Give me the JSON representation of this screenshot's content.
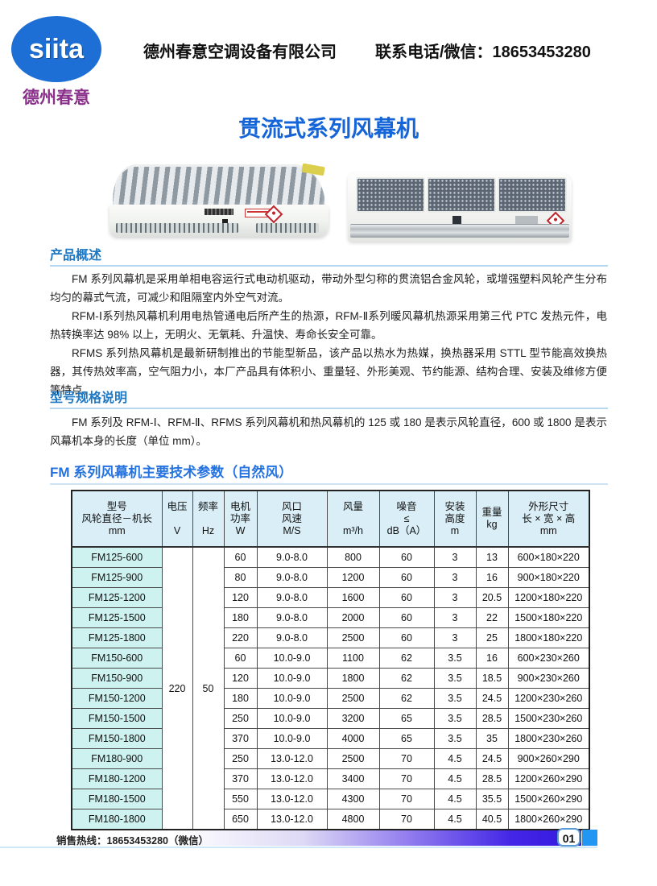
{
  "header": {
    "logo": {
      "text": "siita",
      "caption": "德州春意",
      "circle_color": "#1d6fd6",
      "caption_color": "#8a2f8a"
    },
    "company_name": "德州春意空调设备有限公司",
    "contact": "联系电话/微信：18653453280"
  },
  "title": {
    "text": "贯流式系列风幕机",
    "color": "#1565d8"
  },
  "overview": {
    "heading": "产品概述",
    "paragraphs": [
      "FM 系列风幕机是采用单相电容运行式电动机驱动，带动外型匀称的贯流铝合金风轮，或增强塑料风轮产生分布均匀的幕式气流，可减少和阻隔室内外空气对流。",
      "RFM-Ⅰ系列热风幕机利用电热管通电后所产生的热源，RFM-Ⅱ系列暖风幕机热源采用第三代 PTC 发热元件，电热转换率达 98% 以上，无明火、无氧耗、升温快、寿命长安全可靠。",
      "RFMS 系列热风幕机是最新研制推出的节能型新品，该产品以热水为热媒，换热器采用 STTL 型节能高效换热器，其传热效率高，空气阻力小，本厂产品具有体积小、重量轻、外形美观、节约能源、结构合理、安装及维修方便等特点。"
    ]
  },
  "model_spec": {
    "heading": "型号规格说明",
    "paragraph": "FM 系列及 RFM-Ⅰ、RFM-Ⅱ、RFMS 系列风幕机和热风幕机的 125 或 180 是表示风轮直径，600 或 1800 是表示风幕机本身的长度（单位 mm）。"
  },
  "table_section": {
    "heading": "FM 系列风幕机主要技术参数（自然风）",
    "header_bg": "#d9eef6",
    "model_col_bg": "#cdf2f0",
    "columns": [
      "型号\n风轮直径－机长\nmm",
      "电压\n\nV",
      "频率\n\nHz",
      "电机\n功率\nW",
      "风口\n风速\nM/S",
      "风量\n\nm³/h",
      "噪音\n≤\ndB（A）",
      "安装\n高度\nm",
      "重量\nkg",
      "外形尺寸\n长 × 宽 × 高\nmm"
    ],
    "voltage": "220",
    "frequency": "50",
    "rows": [
      {
        "model": "FM125-600",
        "power": "60",
        "air_speed": "9.0-8.0",
        "air_volume": "800",
        "noise": "60",
        "install_height": "3",
        "weight": "13",
        "dimensions": "600×180×220"
      },
      {
        "model": "FM125-900",
        "power": "80",
        "air_speed": "9.0-8.0",
        "air_volume": "1200",
        "noise": "60",
        "install_height": "3",
        "weight": "16",
        "dimensions": "900×180×220"
      },
      {
        "model": "FM125-1200",
        "power": "120",
        "air_speed": "9.0-8.0",
        "air_volume": "1600",
        "noise": "60",
        "install_height": "3",
        "weight": "20.5",
        "dimensions": "1200×180×220"
      },
      {
        "model": "FM125-1500",
        "power": "180",
        "air_speed": "9.0-8.0",
        "air_volume": "2000",
        "noise": "60",
        "install_height": "3",
        "weight": "22",
        "dimensions": "1500×180×220"
      },
      {
        "model": "FM125-1800",
        "power": "220",
        "air_speed": "9.0-8.0",
        "air_volume": "2500",
        "noise": "60",
        "install_height": "3",
        "weight": "25",
        "dimensions": "1800×180×220"
      },
      {
        "model": "FM150-600",
        "power": "60",
        "air_speed": "10.0-9.0",
        "air_volume": "1100",
        "noise": "62",
        "install_height": "3.5",
        "weight": "16",
        "dimensions": "600×230×260"
      },
      {
        "model": "FM150-900",
        "power": "120",
        "air_speed": "10.0-9.0",
        "air_volume": "1800",
        "noise": "62",
        "install_height": "3.5",
        "weight": "18.5",
        "dimensions": "900×230×260"
      },
      {
        "model": "FM150-1200",
        "power": "180",
        "air_speed": "10.0-9.0",
        "air_volume": "2500",
        "noise": "62",
        "install_height": "3.5",
        "weight": "24.5",
        "dimensions": "1200×230×260"
      },
      {
        "model": "FM150-1500",
        "power": "250",
        "air_speed": "10.0-9.0",
        "air_volume": "3200",
        "noise": "65",
        "install_height": "3.5",
        "weight": "28.5",
        "dimensions": "1500×230×260"
      },
      {
        "model": "FM150-1800",
        "power": "370",
        "air_speed": "10.0-9.0",
        "air_volume": "4000",
        "noise": "65",
        "install_height": "3.5",
        "weight": "35",
        "dimensions": "1800×230×260"
      },
      {
        "model": "FM180-900",
        "power": "250",
        "air_speed": "13.0-12.0",
        "air_volume": "2500",
        "noise": "70",
        "install_height": "4.5",
        "weight": "24.5",
        "dimensions": "900×260×290"
      },
      {
        "model": "FM180-1200",
        "power": "370",
        "air_speed": "13.0-12.0",
        "air_volume": "3400",
        "noise": "70",
        "install_height": "4.5",
        "weight": "28.5",
        "dimensions": "1200×260×290"
      },
      {
        "model": "FM180-1500",
        "power": "550",
        "air_speed": "13.0-12.0",
        "air_volume": "4300",
        "noise": "70",
        "install_height": "4.5",
        "weight": "35.5",
        "dimensions": "1500×260×290"
      },
      {
        "model": "FM180-1800",
        "power": "650",
        "air_speed": "13.0-12.0",
        "air_volume": "4800",
        "noise": "70",
        "install_height": "4.5",
        "weight": "40.5",
        "dimensions": "1800×260×290"
      }
    ]
  },
  "footer": {
    "hotline": "销售热线：18653453280（微信）",
    "page_number": "01",
    "gradient_end_color": "#3318dd",
    "square_color": "#2196f3"
  }
}
